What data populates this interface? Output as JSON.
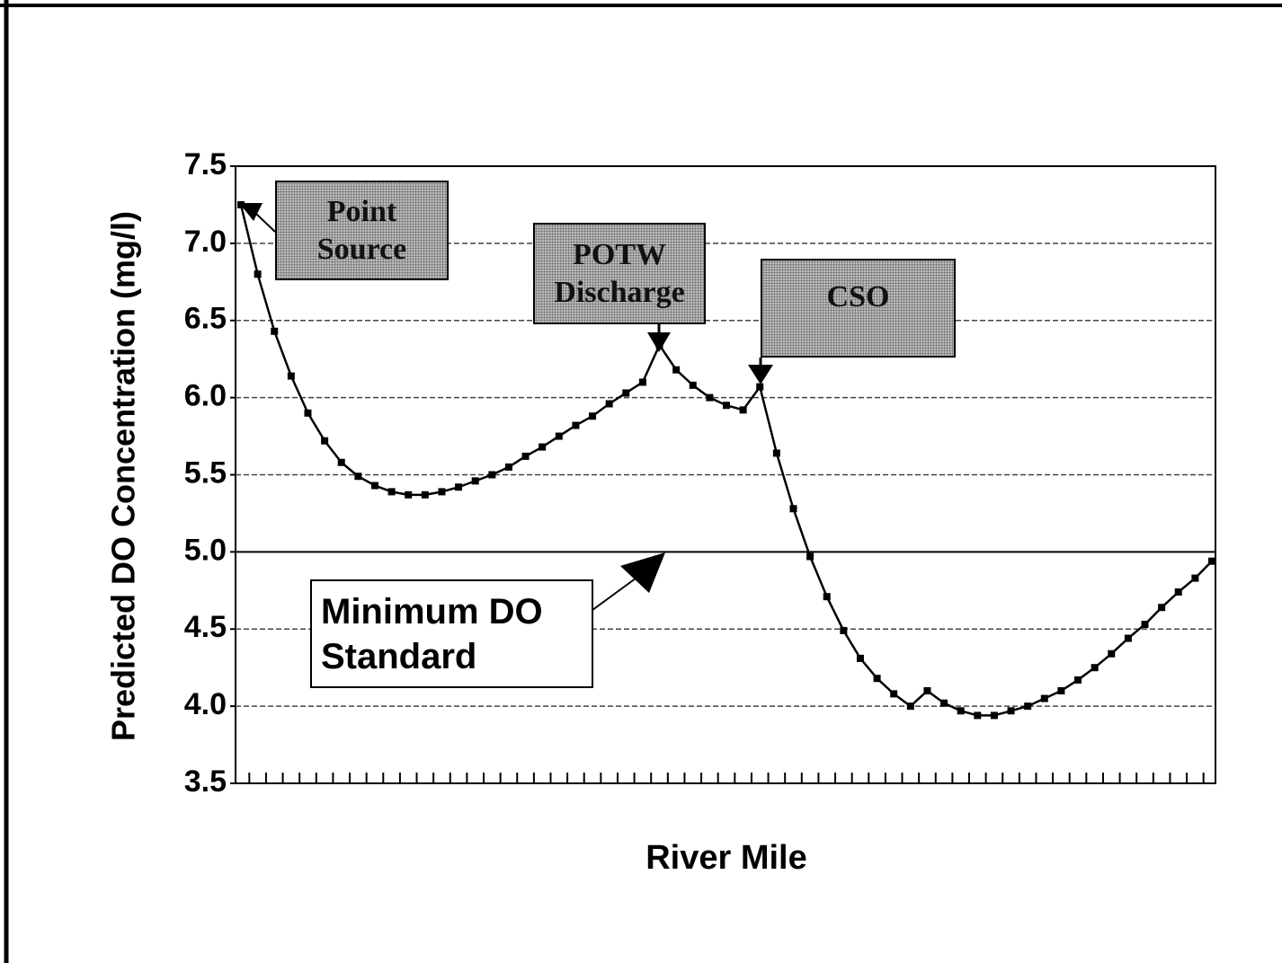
{
  "chart_data": {
    "type": "line",
    "x_label": "River Mile",
    "y_label": "Predicted DO Concentration (mg/l)",
    "categories": [
      null,
      null,
      null,
      null,
      null,
      null,
      null,
      null,
      null,
      null,
      null,
      null,
      null,
      null,
      null,
      null,
      null,
      null,
      null,
      null,
      null,
      null,
      null,
      null,
      null,
      null,
      null,
      null,
      null,
      null,
      null,
      null,
      null,
      null,
      null,
      null,
      null,
      null,
      null,
      null,
      null,
      null,
      null,
      null,
      null,
      null,
      null,
      null,
      null,
      null,
      null,
      null,
      null,
      null,
      null,
      null,
      null,
      null,
      null
    ],
    "series": [
      {
        "name": null,
        "color": "#000000",
        "values": [
          7.25,
          6.8,
          6.43,
          6.14,
          5.9,
          5.72,
          5.58,
          5.49,
          5.43,
          5.39,
          5.37,
          5.37,
          5.39,
          5.42,
          5.46,
          5.5,
          5.55,
          5.62,
          5.68,
          5.75,
          5.82,
          5.88,
          5.96,
          6.03,
          6.1,
          6.34,
          6.18,
          6.08,
          6.0,
          5.95,
          5.92,
          6.07,
          5.64,
          5.28,
          4.97,
          4.71,
          4.49,
          4.31,
          4.18,
          4.08,
          4.0,
          4.1,
          4.02,
          3.97,
          3.94,
          3.94,
          3.97,
          4.0,
          4.05,
          4.1,
          4.17,
          4.25,
          4.34,
          4.44,
          4.53,
          4.64,
          4.74,
          4.83,
          4.94
        ]
      }
    ],
    "ylim": [
      3.5,
      7.5
    ],
    "yticks": [
      3.5,
      {
        "value": 4,
        "label": "4.0"
      },
      4.5,
      {
        "value": 5,
        "label": "5.0"
      },
      5.5,
      {
        "value": 6,
        "label": "6.0"
      },
      6.5,
      {
        "value": 7,
        "label": "7.0"
      },
      7.5
    ],
    "grid": true,
    "standard": {
      "value": 5,
      "label": "Minimum DO Standard"
    },
    "annotations": [
      "Point Source",
      "POTW Discharge",
      "CSO"
    ]
  }
}
